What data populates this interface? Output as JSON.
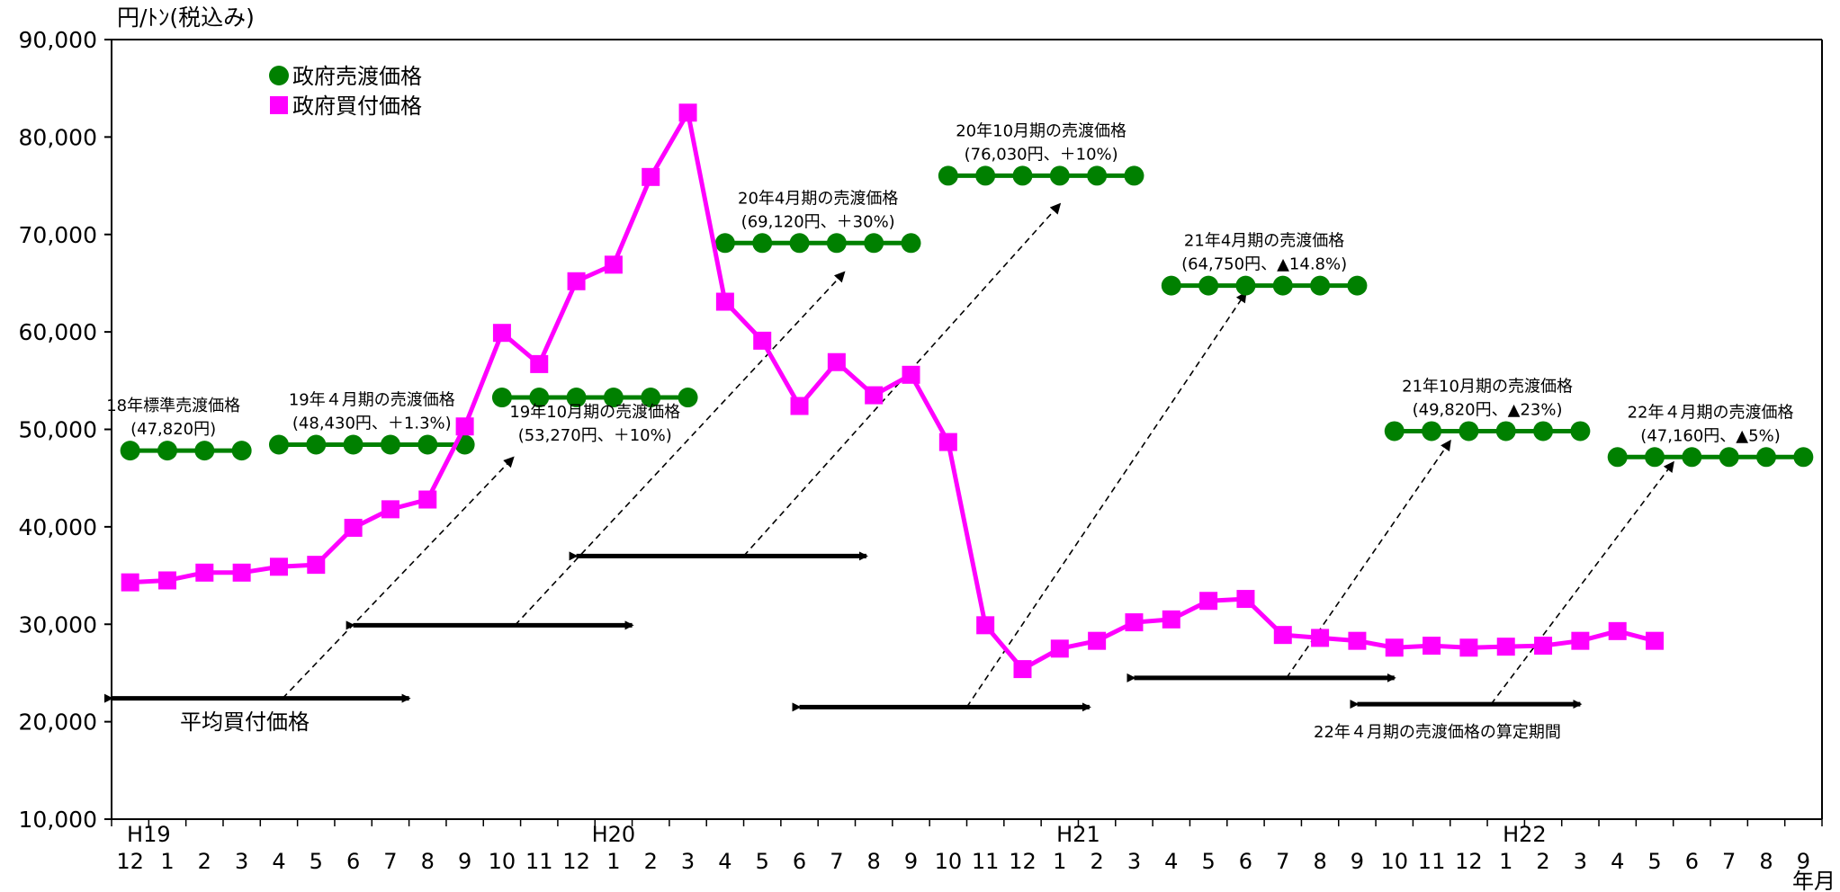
{
  "chart_data": {
    "type": "line",
    "ylabel": "円/ﾄﾝ(税込み)",
    "ylim": [
      10000,
      90000
    ],
    "yticks": [
      "10,000",
      "20,000",
      "30,000",
      "40,000",
      "50,000",
      "60,000",
      "70,000",
      "80,000",
      "90,000"
    ],
    "xlabels": [
      "12",
      "1",
      "2",
      "3",
      "4",
      "5",
      "6",
      "7",
      "8",
      "9",
      "10",
      "11",
      "12",
      "1",
      "2",
      "3",
      "4",
      "5",
      "6",
      "7",
      "8",
      "9",
      "10",
      "11",
      "12",
      "1",
      "2",
      "3",
      "4",
      "5",
      "6",
      "7",
      "8",
      "9",
      "10",
      "11",
      "12",
      "1",
      "2",
      "3",
      "4",
      "5",
      "6",
      "7",
      "8",
      "9"
    ],
    "xunit": "年月",
    "year_labels": [
      {
        "label": "H19",
        "at": 0.5
      },
      {
        "label": "H20",
        "at": 13
      },
      {
        "label": "H21",
        "at": 25.5
      },
      {
        "label": "H22",
        "at": 37.5
      }
    ],
    "legend": [
      {
        "name": "政府売渡価格",
        "color": "#008000",
        "marker": "circle"
      },
      {
        "name": "政府買付価格",
        "color": "#ff00ff",
        "marker": "square"
      }
    ],
    "purchase": {
      "name": "政府買付価格",
      "color": "#ff00ff",
      "values": [
        34300,
        34500,
        35300,
        35300,
        35900,
        36100,
        39900,
        41800,
        42800,
        50300,
        59900,
        56700,
        65200,
        66900,
        75900,
        82500,
        63100,
        59100,
        52400,
        56900,
        53500,
        55600,
        48700,
        29900,
        25400,
        27500,
        28300,
        30200,
        30500,
        32400,
        32600,
        28900,
        28600,
        28300,
        27600,
        27800,
        27600,
        27700,
        27800,
        28300,
        29300,
        28300
      ]
    },
    "sale_segments": [
      {
        "label": "18年標準売渡価格",
        "sub": "(47,820円)",
        "value": 47820,
        "from": 0,
        "to": 3
      },
      {
        "label": "19年４月期の売渡価格",
        "sub": "(48,430円、＋1.3%)",
        "value": 48430,
        "from": 4,
        "to": 9
      },
      {
        "label": "19年10月期の売渡価格",
        "sub": "(53,270円、＋10%)",
        "value": 53270,
        "from": 10,
        "to": 15
      },
      {
        "label": "20年4月期の売渡価格",
        "sub": "(69,120円、＋30%)",
        "value": 69120,
        "from": 16,
        "to": 21
      },
      {
        "label": "20年10月期の売渡価格",
        "sub": "(76,030円、＋10%)",
        "value": 76030,
        "from": 22,
        "to": 27
      },
      {
        "label": "21年4月期の売渡価格",
        "sub": "(64,750円、▲14.8%)",
        "value": 64750,
        "from": 28,
        "to": 33
      },
      {
        "label": "21年10月期の売渡価格",
        "sub": "(49,820円、▲23%)",
        "value": 49820,
        "from": 34,
        "to": 39
      },
      {
        "label": "22年４月期の売渡価格",
        "sub": "(47,160円、▲5%)",
        "value": 47160,
        "from": 40,
        "to": 45
      }
    ],
    "periods": [
      {
        "from": -0.5,
        "to": 7.5,
        "y": 22400,
        "dash_to": [
          10.3,
          47100
        ]
      },
      {
        "from": 6.0,
        "to": 13.5,
        "y": 29900,
        "dash_to": [
          19.2,
          66100
        ]
      },
      {
        "from": 12.0,
        "to": 19.8,
        "y": 37000,
        "dash_to": [
          25.0,
          73100
        ]
      },
      {
        "from": 18.0,
        "to": 25.8,
        "y": 21500,
        "dash_to": [
          30.0,
          64000
        ]
      },
      {
        "from": 27.0,
        "to": 34.0,
        "y": 24500,
        "dash_to": [
          35.5,
          48800
        ]
      },
      {
        "from": 33.0,
        "to": 39.0,
        "y": 21800,
        "dash_to": [
          41.5,
          46600
        ]
      }
    ],
    "annotations": {
      "avg_purchase": "平均買付価格",
      "calc_period": "22年４月期の売渡価格の算定期間"
    }
  }
}
